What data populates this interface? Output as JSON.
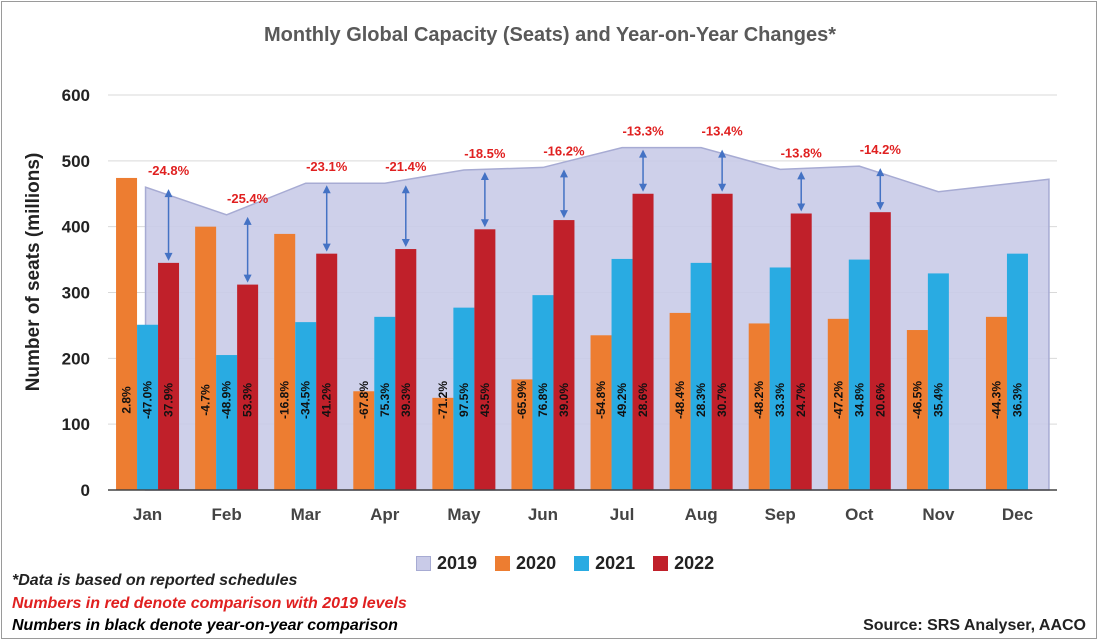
{
  "colors": {
    "s2019_fill": "#c9cbe8",
    "s2019_line": "#a7abd3",
    "s2020": "#ed7d31",
    "s2021": "#29abe2",
    "s2022": "#c0202a",
    "arrow": "#4472c4",
    "red_text": "#e02020",
    "axis": "#222222"
  },
  "notes": {
    "line1": "*Data is based on reported schedules",
    "line2": "Numbers in red denote comparison with 2019 levels",
    "line3": "Numbers in black denote year-on-year comparison"
  },
  "source": "Source: SRS Analyser, AACO",
  "chart_data": {
    "type": "bar",
    "title": "Monthly Global Capacity (Seats) and  Year-on-Year Changes*",
    "ylabel": "Number of seats (millions)",
    "xlabel": "",
    "ylim": [
      0,
      600
    ],
    "yticks": [
      0,
      100,
      200,
      300,
      400,
      500,
      600
    ],
    "grid": true,
    "legend_position": "bottom",
    "categories": [
      "Jan",
      "Feb",
      "Mar",
      "Apr",
      "May",
      "Jun",
      "Jul",
      "Aug",
      "Sep",
      "Oct",
      "Nov",
      "Dec"
    ],
    "area_series": {
      "name": "2019",
      "type": "area",
      "values": [
        460,
        418,
        466,
        466,
        486,
        490,
        520,
        520,
        487,
        492,
        453,
        472
      ]
    },
    "series": [
      {
        "name": "2020",
        "values": [
          474,
          400,
          389,
          150,
          140,
          168,
          235,
          269,
          253,
          260,
          243,
          263
        ],
        "labels": [
          "2.8%",
          "-4.7%",
          "-16.8%",
          "-67.8%",
          "-71.2%",
          "-65.9%",
          "-54.8%",
          "-48.4%",
          "-48.2%",
          "-47.2%",
          "-46.5%",
          "-44.3%"
        ]
      },
      {
        "name": "2021",
        "values": [
          251,
          205,
          255,
          263,
          277,
          296,
          351,
          345,
          338,
          350,
          329,
          359
        ],
        "labels": [
          "-47.0%",
          "-48.9%",
          "-34.5%",
          "75.3%",
          "97.5%",
          "76.8%",
          "49.2%",
          "28.3%",
          "33.3%",
          "34.8%",
          "35.4%",
          "36.3%"
        ]
      },
      {
        "name": "2022",
        "values": [
          345,
          312,
          359,
          366,
          396,
          410,
          450,
          450,
          420,
          422,
          null,
          null
        ],
        "labels": [
          "37.9%",
          "53.3%",
          "41.2%",
          "39.3%",
          "43.5%",
          "39.0%",
          "28.6%",
          "30.7%",
          "24.7%",
          "20.6%",
          null,
          null
        ]
      }
    ],
    "vs_2019_labels": [
      "-24.8%",
      "-25.4%",
      "-23.1%",
      "-21.4%",
      "-18.5%",
      "-16.2%",
      "-13.3%",
      "-13.4%",
      "-13.8%",
      "-14.2%",
      null,
      null
    ]
  }
}
